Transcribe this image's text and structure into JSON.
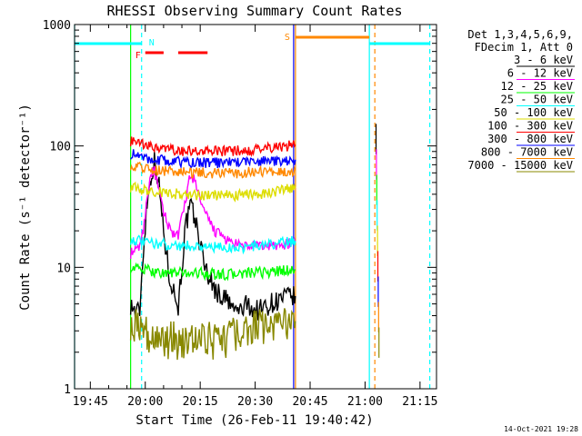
{
  "chart_data": {
    "type": "line",
    "title": "RHESSI Observing Summary Count Rates",
    "xlabel": "Start Time (26-Feb-11 19:40:42)",
    "ylabel": "Count Rate (s⁻¹ detector⁻¹)",
    "yscale": "log",
    "xlim": [
      "19:40:42",
      "21:19:30"
    ],
    "ylim": [
      1,
      1000
    ],
    "x_tick_labels": [
      "19:45",
      "20:00",
      "20:15",
      "20:30",
      "20:45",
      "21:00",
      "21:15"
    ],
    "y_tick_labels": [
      "1",
      "10",
      "100",
      "1000"
    ],
    "legend_header": [
      "Det 1,3,4,5,6,9,",
      "FDecim 1, Att 0"
    ],
    "legend_position": "right",
    "footer": "14-Oct-2021 19:28",
    "series": [
      {
        "name": "3 - 6 keV",
        "color": "#000000",
        "data": [
          [
            "19:56:00",
            5.0
          ],
          [
            "19:57:30",
            4.2
          ],
          [
            "19:58:30",
            4.5
          ],
          [
            "19:59:30",
            14
          ],
          [
            "20:00:30",
            35
          ],
          [
            "20:01:30",
            55
          ],
          [
            "20:02:30",
            75
          ],
          [
            "20:03:30",
            55
          ],
          [
            "20:04:30",
            28
          ],
          [
            "20:05:30",
            15
          ],
          [
            "20:06:30",
            9
          ],
          [
            "20:08:00",
            6
          ],
          [
            "20:09:00",
            4.8
          ],
          [
            "20:10:00",
            10
          ],
          [
            "20:11:00",
            22
          ],
          [
            "20:12:30",
            32
          ],
          [
            "20:14:00",
            22
          ],
          [
            "20:15:30",
            13
          ],
          [
            "20:17:00",
            9
          ],
          [
            "20:18:30",
            7
          ],
          [
            "20:20:00",
            6
          ],
          [
            "20:22:00",
            5.5
          ],
          [
            "20:24:00",
            4.5
          ],
          [
            "20:26:00",
            4.4
          ],
          [
            "20:28:00",
            5
          ],
          [
            "20:30:00",
            4.4
          ],
          [
            "20:32:00",
            4.6
          ],
          [
            "20:34:00",
            5
          ],
          [
            "20:36:00",
            5.3
          ],
          [
            "20:38:00",
            5.6
          ],
          [
            "20:41:00",
            5.8
          ]
        ]
      },
      {
        "name": "6 - 12 keV",
        "color": "#ff00ff",
        "data": [
          [
            "19:56:00",
            13
          ],
          [
            "19:58:00",
            14
          ],
          [
            "19:59:30",
            20
          ],
          [
            "20:00:30",
            38
          ],
          [
            "20:01:30",
            60
          ],
          [
            "20:02:30",
            62
          ],
          [
            "20:03:30",
            45
          ],
          [
            "20:05:00",
            28
          ],
          [
            "20:07:00",
            20
          ],
          [
            "20:09:00",
            18
          ],
          [
            "20:10:30",
            30
          ],
          [
            "20:12:00",
            52
          ],
          [
            "20:13:30",
            55
          ],
          [
            "20:15:00",
            35
          ],
          [
            "20:17:00",
            25
          ],
          [
            "20:19:00",
            20
          ],
          [
            "20:21:00",
            18
          ],
          [
            "20:23:00",
            16
          ],
          [
            "20:26:00",
            15
          ],
          [
            "20:30:00",
            15
          ],
          [
            "20:35:00",
            15
          ],
          [
            "20:41:00",
            16
          ]
        ]
      },
      {
        "name": "12 - 25 keV",
        "color": "#00ff00",
        "data": [
          [
            "19:56:00",
            10
          ],
          [
            "20:00:00",
            9.5
          ],
          [
            "20:05:00",
            9
          ],
          [
            "20:10:00",
            9
          ],
          [
            "20:15:00",
            9
          ],
          [
            "20:20:00",
            8.7
          ],
          [
            "20:25:00",
            8.8
          ],
          [
            "20:30:00",
            9
          ],
          [
            "20:35:00",
            9.2
          ],
          [
            "20:41:00",
            9.6
          ]
        ]
      },
      {
        "name": "25 - 50 keV",
        "color": "#00ffff",
        "data": [
          [
            "19:56:00",
            17
          ],
          [
            "20:00:00",
            16
          ],
          [
            "20:05:00",
            15.5
          ],
          [
            "20:10:00",
            15
          ],
          [
            "20:15:00",
            15
          ],
          [
            "20:20:00",
            14.5
          ],
          [
            "20:25:00",
            14.5
          ],
          [
            "20:30:00",
            15
          ],
          [
            "20:35:00",
            15.5
          ],
          [
            "20:41:00",
            16.5
          ]
        ]
      },
      {
        "name": "50 - 100 keV",
        "color": "#dddd00",
        "data": [
          [
            "19:56:00",
            46
          ],
          [
            "20:00:00",
            43
          ],
          [
            "20:05:00",
            41
          ],
          [
            "20:10:00",
            40
          ],
          [
            "20:15:00",
            39
          ],
          [
            "20:20:00",
            39
          ],
          [
            "20:25:00",
            39
          ],
          [
            "20:30:00",
            40
          ],
          [
            "20:35:00",
            42
          ],
          [
            "20:41:00",
            45
          ]
        ]
      },
      {
        "name": "100 - 300 keV",
        "color": "#ff0000",
        "data": [
          [
            "19:56:00",
            110
          ],
          [
            "20:00:00",
            100
          ],
          [
            "20:05:00",
            94
          ],
          [
            "20:10:00",
            91
          ],
          [
            "20:15:00",
            90
          ],
          [
            "20:20:00",
            90
          ],
          [
            "20:25:00",
            91
          ],
          [
            "20:30:00",
            93
          ],
          [
            "20:35:00",
            97
          ],
          [
            "20:41:00",
            102
          ]
        ]
      },
      {
        "name": "300 - 800 keV",
        "color": "#0000ff",
        "data": [
          [
            "19:56:00",
            86
          ],
          [
            "20:00:00",
            80
          ],
          [
            "20:05:00",
            76
          ],
          [
            "20:10:00",
            74
          ],
          [
            "20:15:00",
            73
          ],
          [
            "20:20:00",
            73
          ],
          [
            "20:25:00",
            74
          ],
          [
            "20:30:00",
            75
          ],
          [
            "20:35:00",
            75
          ],
          [
            "20:41:00",
            77
          ]
        ]
      },
      {
        "name": "800 - 7000 keV",
        "color": "#ff8800",
        "data": [
          [
            "19:56:00",
            70
          ],
          [
            "20:00:00",
            66
          ],
          [
            "20:05:00",
            63
          ],
          [
            "20:10:00",
            61
          ],
          [
            "20:15:00",
            60
          ],
          [
            "20:20:00",
            60
          ],
          [
            "20:25:00",
            60
          ],
          [
            "20:30:00",
            61
          ],
          [
            "20:35:00",
            62
          ],
          [
            "20:41:00",
            63
          ]
        ]
      },
      {
        "name": "7000 - 15000 keV",
        "color": "#888800",
        "data": [
          [
            "19:56:00",
            3.6
          ],
          [
            "19:58:00",
            3.4
          ],
          [
            "20:00:00",
            3.2
          ],
          [
            "20:02:00",
            2.5
          ],
          [
            "20:05:00",
            2.5
          ],
          [
            "20:10:00",
            2.5
          ],
          [
            "20:15:00",
            2.5
          ],
          [
            "20:20:00",
            2.5
          ],
          [
            "20:25:00",
            2.7
          ],
          [
            "20:30:00",
            3.2
          ],
          [
            "20:35:00",
            3.4
          ],
          [
            "20:41:00",
            3.6
          ]
        ]
      }
    ],
    "late_segment": {
      "x_range": [
        "21:03:00",
        "21:03:30"
      ],
      "peak": 190,
      "low": 4
    },
    "flags": [
      {
        "label": "N",
        "type": "night",
        "color": "#00ffff",
        "intervals": [
          [
            "19:40:42",
            "19:59:00"
          ],
          [
            "21:01:10",
            "21:17:40"
          ]
        ]
      },
      {
        "label": "F",
        "type": "flare",
        "color": "#ff0000",
        "intervals": [
          [
            "20:00:00",
            "20:05:00"
          ],
          [
            "20:09:00",
            "20:17:00"
          ]
        ]
      },
      {
        "label": "S",
        "type": "SAA",
        "color": "#ff8800",
        "intervals": [
          [
            "20:41:00",
            "21:01:10"
          ]
        ]
      }
    ],
    "vertical_markers": [
      {
        "time": "19:40:42",
        "color": "#00ffff",
        "style": "solid"
      },
      {
        "time": "19:56:00",
        "color": "#00ff00",
        "style": "solid"
      },
      {
        "time": "19:59:00",
        "color": "#00ffff",
        "style": "dashed"
      },
      {
        "time": "20:40:30",
        "color": "#0000ff",
        "style": "solid"
      },
      {
        "time": "20:41:00",
        "color": "#ff8800",
        "style": "solid"
      },
      {
        "time": "21:01:10",
        "color": "#00ffff",
        "style": "solid"
      },
      {
        "time": "21:02:40",
        "color": "#ff8800",
        "style": "dashed"
      },
      {
        "time": "21:17:40",
        "color": "#00ffff",
        "style": "dashed"
      }
    ]
  }
}
